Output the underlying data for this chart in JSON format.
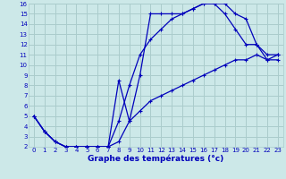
{
  "xlabel": "Graphe des températures (°c)",
  "bg_color": "#cce8e8",
  "grid_color": "#aacccc",
  "line_color": "#0000bb",
  "line1": {
    "x": [
      0,
      1,
      2,
      3,
      4,
      5,
      6,
      7,
      8,
      9,
      10,
      11,
      12,
      13,
      14,
      15,
      16,
      17,
      18,
      19,
      20,
      21,
      22,
      23
    ],
    "y": [
      5.0,
      3.5,
      2.5,
      2.0,
      2.0,
      2.0,
      2.0,
      2.0,
      4.5,
      8.0,
      11.0,
      12.5,
      13.5,
      14.5,
      15.0,
      15.5,
      16.0,
      16.0,
      16.0,
      15.0,
      14.5,
      12.0,
      10.5,
      10.5
    ]
  },
  "line2": {
    "x": [
      0,
      1,
      2,
      3,
      4,
      5,
      6,
      7,
      8,
      9,
      10,
      11,
      12,
      13,
      14,
      15,
      16,
      17,
      18,
      19,
      20,
      21,
      22,
      23
    ],
    "y": [
      5.0,
      3.5,
      2.5,
      2.0,
      2.0,
      2.0,
      2.0,
      2.0,
      8.5,
      4.5,
      9.0,
      15.0,
      15.0,
      15.0,
      15.0,
      15.5,
      16.0,
      16.0,
      15.0,
      13.5,
      12.0,
      12.0,
      11.0,
      11.0
    ]
  },
  "line3": {
    "x": [
      0,
      1,
      2,
      3,
      4,
      5,
      6,
      7,
      8,
      9,
      10,
      11,
      12,
      13,
      14,
      15,
      16,
      17,
      18,
      19,
      20,
      21,
      22,
      23
    ],
    "y": [
      5.0,
      3.5,
      2.5,
      2.0,
      2.0,
      2.0,
      2.0,
      2.0,
      2.5,
      4.5,
      5.5,
      6.5,
      7.0,
      7.5,
      8.0,
      8.5,
      9.0,
      9.5,
      10.0,
      10.5,
      10.5,
      11.0,
      10.5,
      11.0
    ]
  },
  "xlim": [
    -0.5,
    23.5
  ],
  "ylim": [
    2,
    16
  ],
  "xticks": [
    0,
    1,
    2,
    3,
    4,
    5,
    6,
    7,
    8,
    9,
    10,
    11,
    12,
    13,
    14,
    15,
    16,
    17,
    18,
    19,
    20,
    21,
    22,
    23
  ],
  "yticks": [
    2,
    3,
    4,
    5,
    6,
    7,
    8,
    9,
    10,
    11,
    12,
    13,
    14,
    15,
    16
  ],
  "xlabel_fontsize": 6.5,
  "tick_fontsize": 5.0
}
